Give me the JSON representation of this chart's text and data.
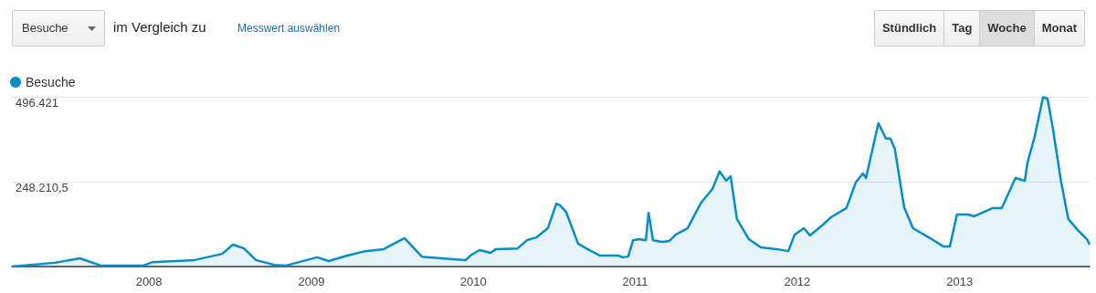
{
  "chart_data": {
    "type": "area",
    "annotations": [
      "Besuche",
      "im Vergleich zu",
      "Messwert auswählen",
      "Stündlich",
      "Tag",
      "Woche",
      "Monat"
    ],
    "x": [
      "2007-02-26",
      "2007-06-03",
      "2007-07-29",
      "2007-09-14",
      "2007-12-20",
      "2008-01-09",
      "2008-04-13",
      "2008-06-14",
      "2008-07-08",
      "2008-08-02",
      "2008-08-29",
      "2008-10-09",
      "2008-11-05",
      "2009-01-14",
      "2009-02-09",
      "2009-03-23",
      "2009-05-03",
      "2009-06-13",
      "2009-07-30",
      "2009-09-07",
      "2009-10-21",
      "2009-12-15",
      "2009-12-25",
      "2010-01-15",
      "2010-02-09",
      "2010-02-21",
      "2010-04-11",
      "2010-05-02",
      "2010-05-23",
      "2010-06-18",
      "2010-07-07",
      "2010-07-15",
      "2010-07-29",
      "2010-08-25",
      "2010-09-15",
      "2010-10-14",
      "2010-11-24",
      "2010-12-04",
      "2010-12-16",
      "2010-12-27",
      "2011-01-10",
      "2011-01-25",
      "2011-01-31",
      "2011-02-10",
      "2011-03-03",
      "2011-03-19",
      "2011-04-02",
      "2011-04-29",
      "2011-05-28",
      "2011-06-24",
      "2011-07-10",
      "2011-07-25",
      "2011-08-04",
      "2011-08-18",
      "2011-09-14",
      "2011-10-11",
      "2011-11-15",
      "2011-12-12",
      "2011-12-26",
      "2012-01-16",
      "2012-01-30",
      "2012-02-26",
      "2012-03-17",
      "2012-04-21",
      "2012-05-12",
      "2012-05-28",
      "2012-06-04",
      "2012-07-02",
      "2012-07-19",
      "2012-07-29",
      "2012-08-08",
      "2012-08-29",
      "2012-09-18",
      "2012-10-30",
      "2012-11-25",
      "2012-12-10",
      "2012-12-26",
      "2013-01-20",
      "2013-02-03",
      "2013-03-17",
      "2013-04-06",
      "2013-05-07",
      "2013-05-28",
      "2013-06-03",
      "2013-06-19",
      "2013-07-08",
      "2013-07-18",
      "2013-07-30",
      "2013-08-18",
      "2013-09-03",
      "2013-09-24",
      "2013-10-15",
      "2013-10-21"
    ],
    "series": [
      {
        "name": "Besuche",
        "color": "#058dc7",
        "values": [
          0,
          11000,
          24000,
          3000,
          3000,
          13000,
          19000,
          37000,
          64000,
          53000,
          19000,
          5000,
          3000,
          27000,
          16000,
          32000,
          45000,
          51000,
          83000,
          29000,
          24000,
          19000,
          32000,
          48000,
          40000,
          51000,
          53000,
          77000,
          85000,
          112000,
          184000,
          179000,
          160000,
          67000,
          51000,
          32000,
          32000,
          27000,
          29000,
          77000,
          80000,
          77000,
          157000,
          77000,
          72000,
          75000,
          93000,
          112000,
          184000,
          227000,
          278000,
          251000,
          264000,
          139000,
          80000,
          56000,
          51000,
          45000,
          93000,
          112000,
          91000,
          120000,
          144000,
          171000,
          246000,
          272000,
          259000,
          419000,
          374000,
          374000,
          344000,
          173000,
          112000,
          80000,
          59000,
          59000,
          152000,
          152000,
          147000,
          171000,
          171000,
          259000,
          251000,
          304000,
          379000,
          495000,
          491000,
          406000,
          246000,
          139000,
          107000,
          80000,
          64000
        ]
      }
    ],
    "xlim": [
      "2007-02-26",
      "2013-10-21"
    ],
    "xticks": [
      "2008",
      "2009",
      "2010",
      "2011",
      "2012",
      "2013"
    ],
    "ylim": [
      0,
      496421
    ],
    "yticks": [
      {
        "value": 0,
        "label": null
      },
      {
        "value": 248210.5,
        "label": "248.210,5"
      },
      {
        "value": 496421,
        "label": "496.421"
      }
    ],
    "grid": "y",
    "legend": "top left",
    "marker": "none",
    "line_style": "solid"
  }
}
